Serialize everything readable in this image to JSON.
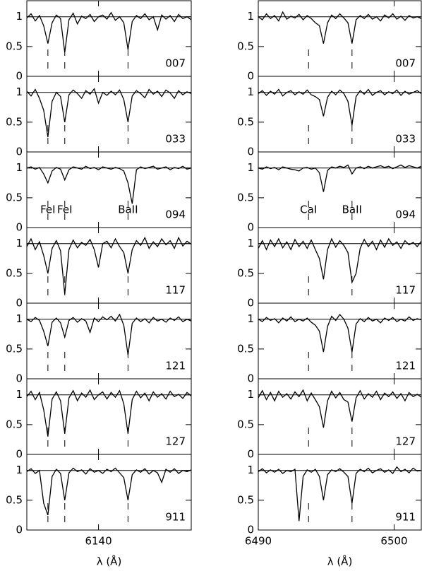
{
  "chart_data": [
    {
      "type": "line",
      "xlabel": "λ (Å)",
      "color": "#000000",
      "xlim": [
        6135.75,
        6145.5
      ],
      "xticks": [
        6140
      ],
      "ylim": [
        0,
        1.27
      ],
      "yticks": [
        0,
        0.5,
        1
      ],
      "hline": 1,
      "markers": [
        6137,
        6138,
        6141.75
      ],
      "x": [
        6135.75,
        6136,
        6136.25,
        6136.5,
        6136.75,
        6137,
        6137.25,
        6137.5,
        6137.75,
        6138,
        6138.25,
        6138.5,
        6138.75,
        6139,
        6139.25,
        6139.5,
        6139.75,
        6140,
        6140.25,
        6140.5,
        6140.75,
        6141,
        6141.25,
        6141.5,
        6141.75,
        6142,
        6142.25,
        6142.5,
        6142.75,
        6143,
        6143.25,
        6143.5,
        6143.75,
        6144,
        6144.25,
        6144.5,
        6144.75,
        6145,
        6145.25,
        6145.5
      ],
      "panels": [
        {
          "label": "007",
          "values": [
            0.98,
            1.05,
            0.93,
            1.02,
            0.85,
            0.55,
            0.9,
            1.03,
            0.97,
            0.4,
            0.95,
            1.06,
            0.88,
            1.01,
            0.97,
            1.04,
            0.92,
            1.0,
            1.03,
            0.96,
            1.07,
            0.94,
            1.0,
            0.9,
            0.45,
            0.92,
            1.02,
            0.97,
            1.05,
            0.95,
            1.0,
            0.78,
            1.03,
            0.96,
            1.02,
            0.92,
            1.04,
            0.97,
            1.0,
            0.95
          ]
        },
        {
          "label": "033",
          "values": [
            1.02,
            0.94,
            1.05,
            0.9,
            0.7,
            0.25,
            0.85,
            1.0,
            0.93,
            0.5,
            0.96,
            1.04,
            0.98,
            0.9,
            1.03,
            0.97,
            1.06,
            0.82,
            1.0,
            0.95,
            1.02,
            0.96,
            1.04,
            0.88,
            0.5,
            0.94,
            1.03,
            0.98,
            0.91,
            1.05,
            0.97,
            1.02,
            0.93,
            1.04,
            0.99,
            0.9,
            1.03,
            0.96,
            1.01,
            0.98
          ]
        },
        {
          "label": "094",
          "marker_labels": [
            "FeI",
            "FeI",
            "BaII"
          ],
          "values": [
            1.0,
            1.02,
            0.98,
            1.01,
            0.9,
            0.75,
            0.95,
            1.01,
            0.98,
            0.8,
            0.97,
            1.02,
            1.0,
            0.98,
            1.03,
            0.99,
            1.01,
            0.97,
            1.02,
            1.0,
            0.98,
            1.01,
            0.99,
            0.95,
            0.75,
            0.4,
            0.97,
            1.02,
            0.99,
            1.01,
            1.03,
            0.98,
            1.0,
            1.02,
            0.97,
            1.01,
            0.99,
            1.03,
            0.98,
            1.0
          ]
        },
        {
          "label": "117",
          "values": [
            0.95,
            1.08,
            0.9,
            1.03,
            0.8,
            0.5,
            0.92,
            1.05,
            0.88,
            0.15,
            0.9,
            1.06,
            0.93,
            1.02,
            0.97,
            1.07,
            0.9,
            0.6,
            1.0,
            1.04,
            0.93,
            1.08,
            0.95,
            0.85,
            0.5,
            0.9,
            1.05,
            0.97,
            1.1,
            0.92,
            1.03,
            0.95,
            1.08,
            0.98,
            1.05,
            0.92,
            1.1,
            0.96,
            1.04,
            0.99
          ]
        },
        {
          "label": "121",
          "values": [
            1.0,
            0.96,
            1.03,
            0.98,
            0.8,
            0.55,
            0.95,
            1.02,
            0.94,
            0.7,
            0.98,
            1.03,
            0.95,
            1.01,
            0.97,
            0.78,
            1.02,
            0.96,
            1.04,
            0.99,
            1.05,
            0.97,
            1.08,
            0.9,
            0.4,
            0.93,
            1.02,
            0.96,
            1.01,
            0.94,
            1.03,
            0.97,
            1.0,
            0.95,
            1.02,
            0.98,
            1.04,
            0.96,
            1.0,
            0.97
          ]
        },
        {
          "label": "127",
          "values": [
            0.97,
            1.06,
            0.92,
            1.04,
            0.75,
            0.3,
            0.93,
            1.05,
            0.9,
            0.35,
            0.95,
            1.07,
            0.9,
            1.03,
            0.96,
            1.08,
            0.92,
            1.0,
            1.05,
            0.93,
            1.04,
            0.96,
            1.07,
            0.85,
            0.35,
            0.92,
            1.06,
            0.95,
            1.03,
            0.9,
            1.05,
            0.96,
            1.02,
            0.93,
            1.06,
            0.97,
            1.01,
            0.94,
            1.04,
            0.98
          ]
        },
        {
          "label": "911",
          "values": [
            0.98,
            1.03,
            0.95,
            1.0,
            0.45,
            0.25,
            0.9,
            1.02,
            0.95,
            0.5,
            0.96,
            1.04,
            0.98,
            1.01,
            0.94,
            1.03,
            0.97,
            1.0,
            0.95,
            1.02,
            0.98,
            1.04,
            0.96,
            0.88,
            0.5,
            0.93,
            1.01,
            0.97,
            1.03,
            0.94,
            1.0,
            0.96,
            0.8,
            1.02,
            0.97,
            1.03,
            0.95,
            1.0,
            0.98,
            1.01
          ]
        }
      ]
    },
    {
      "type": "line",
      "xlabel": "λ (Å)",
      "color": "#000000",
      "xlim": [
        6490,
        6502
      ],
      "xticks": [
        6490,
        6500
      ],
      "ylim": [
        0,
        1.27
      ],
      "yticks": [
        0,
        0.5,
        1
      ],
      "hline": 1,
      "markers": [
        6493.7,
        6496.9
      ],
      "x": [
        6490,
        6490.3,
        6490.6,
        6490.9,
        6491.2,
        6491.5,
        6491.8,
        6492.1,
        6492.4,
        6492.7,
        6493,
        6493.3,
        6493.6,
        6493.9,
        6494.2,
        6494.5,
        6494.8,
        6495.1,
        6495.4,
        6495.7,
        6496,
        6496.3,
        6496.6,
        6496.9,
        6497.2,
        6497.5,
        6497.8,
        6498.1,
        6498.4,
        6498.7,
        6499,
        6499.3,
        6499.6,
        6499.9,
        6500.2,
        6500.5,
        6500.8,
        6501.1,
        6501.4,
        6501.7,
        6502
      ],
      "panels": [
        {
          "label": "007",
          "values": [
            1.0,
            0.95,
            1.05,
            0.97,
            1.02,
            0.93,
            1.08,
            0.96,
            1.01,
            0.98,
            1.04,
            0.95,
            1.02,
            0.97,
            0.9,
            0.85,
            0.55,
            0.9,
            1.03,
            0.97,
            1.05,
            0.98,
            0.9,
            0.55,
            0.95,
            1.02,
            0.97,
            1.04,
            0.96,
            1.0,
            0.93,
            1.03,
            0.98,
            1.05,
            0.96,
            1.01,
            0.94,
            1.02,
            0.98,
            1.0,
            0.97
          ]
        },
        {
          "label": "033",
          "values": [
            0.98,
            1.03,
            0.95,
            1.02,
            0.97,
            1.05,
            0.94,
            1.0,
            1.03,
            0.96,
            1.01,
            0.97,
            1.04,
            0.96,
            0.93,
            0.88,
            0.6,
            0.92,
            1.02,
            0.96,
            1.04,
            0.98,
            0.85,
            0.45,
            0.93,
            1.03,
            0.97,
            1.05,
            0.95,
            1.0,
            1.03,
            0.96,
            1.01,
            0.98,
            1.04,
            0.95,
            1.02,
            0.97,
            1.0,
            1.03,
            0.98
          ]
        },
        {
          "label": "094",
          "marker_labels": [
            "CaI",
            "BaII"
          ],
          "values": [
            1.0,
            0.98,
            1.02,
            0.99,
            1.01,
            0.97,
            1.02,
            1.0,
            0.98,
            0.97,
            0.95,
            1.0,
            1.01,
            0.98,
            1.0,
            0.92,
            0.6,
            0.96,
            1.02,
            1.0,
            1.03,
            1.01,
            1.05,
            0.9,
            1.0,
            1.02,
            0.99,
            1.03,
            1.0,
            1.02,
            1.04,
            1.01,
            1.03,
            0.99,
            1.02,
            1.05,
            1.01,
            1.04,
            1.02,
            1.0,
            1.03
          ]
        },
        {
          "label": "117",
          "values": [
            0.92,
            1.05,
            0.9,
            1.06,
            0.95,
            1.08,
            0.93,
            1.03,
            0.9,
            1.07,
            0.95,
            1.04,
            0.92,
            1.06,
            0.9,
            0.75,
            0.4,
            0.9,
            1.08,
            0.94,
            1.05,
            0.97,
            0.85,
            0.35,
            0.5,
            0.92,
            1.07,
            0.95,
            1.04,
            0.9,
            1.06,
            0.94,
            1.08,
            0.97,
            1.03,
            0.92,
            1.05,
            0.98,
            1.02,
            0.95,
            1.04
          ]
        },
        {
          "label": "121",
          "values": [
            1.0,
            0.96,
            1.03,
            0.98,
            1.01,
            0.94,
            1.02,
            0.97,
            1.04,
            0.96,
            1.0,
            0.97,
            1.02,
            0.95,
            0.9,
            0.8,
            0.45,
            0.88,
            1.05,
            0.98,
            1.08,
            1.0,
            0.85,
            0.45,
            0.92,
            1.01,
            0.96,
            1.03,
            0.97,
            1.0,
            0.94,
            1.02,
            0.98,
            1.03,
            0.96,
            1.0,
            0.97,
            1.04,
            0.98,
            1.01,
            0.99
          ]
        },
        {
          "label": "127",
          "values": [
            0.95,
            1.07,
            0.92,
            1.04,
            0.9,
            1.06,
            0.96,
            1.02,
            0.93,
            1.05,
            0.97,
            1.08,
            0.9,
            1.03,
            0.92,
            0.8,
            0.45,
            0.9,
            1.06,
            0.95,
            1.04,
            0.92,
            0.88,
            0.55,
            0.95,
            1.07,
            0.93,
            1.02,
            0.96,
            1.06,
            0.92,
            1.03,
            0.97,
            1.05,
            0.94,
            1.02,
            0.9,
            1.04,
            0.97,
            1.01,
            0.96
          ]
        },
        {
          "label": "911",
          "values": [
            0.98,
            1.03,
            0.96,
            1.01,
            0.97,
            1.02,
            0.95,
            1.0,
            0.98,
            1.02,
            0.15,
            0.9,
            1.01,
            0.97,
            1.02,
            0.9,
            0.5,
            0.93,
            1.01,
            0.98,
            1.03,
            0.97,
            0.9,
            0.45,
            0.95,
            1.02,
            0.98,
            1.04,
            0.96,
            1.0,
            1.03,
            0.97,
            1.01,
            0.95,
            1.06,
            0.98,
            1.02,
            0.96,
            1.04,
            0.99,
            1.0
          ]
        }
      ]
    }
  ]
}
